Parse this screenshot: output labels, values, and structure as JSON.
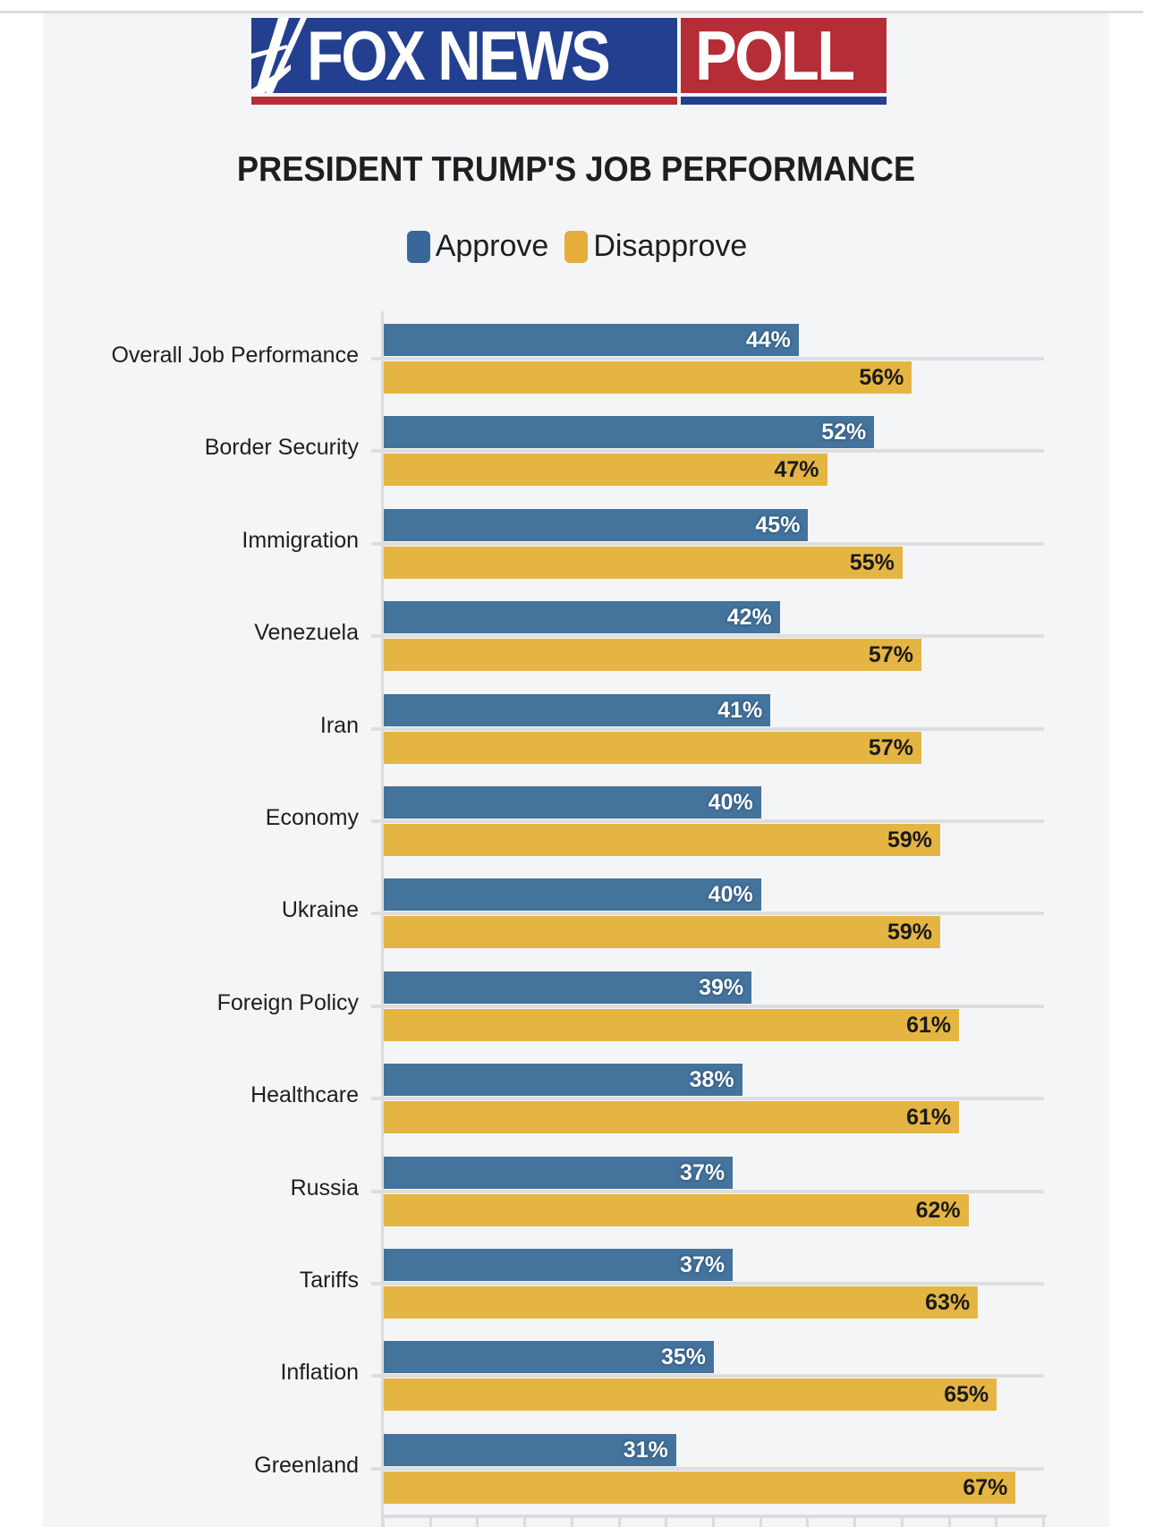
{
  "logo": {
    "left_text": "FOX NEWS",
    "right_text": "POLL",
    "colors": {
      "blue": "#233f8f",
      "red": "#b52d36"
    }
  },
  "chart_data": {
    "type": "bar",
    "orientation": "horizontal",
    "title": "PRESIDENT TRUMP'S JOB PERFORMANCE",
    "xlabel": "",
    "ylabel": "",
    "xlim": [
      0,
      70
    ],
    "tick_step": 5,
    "grid": true,
    "legend_position": "top-center",
    "value_suffix": "%",
    "categories": [
      "Overall Job Performance",
      "Border Security",
      "Immigration",
      "Venezuela",
      "Iran",
      "Economy",
      "Ukraine",
      "Foreign Policy",
      "Healthcare",
      "Russia",
      "Tariffs",
      "Inflation",
      "Greenland"
    ],
    "series": [
      {
        "name": "Approve",
        "color": "#44739c",
        "values": [
          44,
          52,
          45,
          42,
          41,
          40,
          40,
          39,
          38,
          37,
          37,
          35,
          31
        ]
      },
      {
        "name": "Disapprove",
        "color": "#e5b544",
        "values": [
          56,
          47,
          55,
          57,
          57,
          59,
          59,
          61,
          61,
          62,
          63,
          65,
          67
        ]
      }
    ]
  },
  "legend": {
    "approve_label": "Approve",
    "disapprove_label": "Disapprove",
    "approve_color": "#38689a",
    "disapprove_color": "#e6ad3a"
  }
}
